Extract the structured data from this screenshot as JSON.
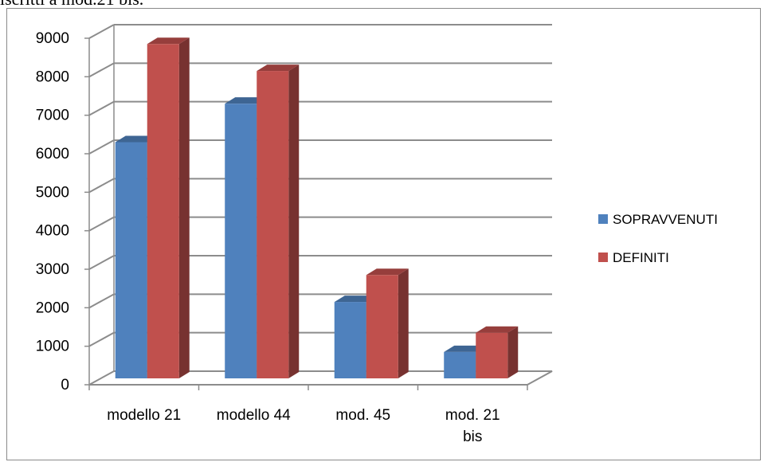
{
  "header_text": "iscritti a mod.21 bis.",
  "chart_data": {
    "type": "bar",
    "categories": [
      [
        "modello 21"
      ],
      [
        "modello 44"
      ],
      [
        "mod. 45"
      ],
      [
        "mod. 21",
        "bis"
      ]
    ],
    "series": [
      {
        "name": "SOPRAVVENUTI",
        "values": [
          6300,
          7300,
          2150,
          850
        ],
        "color": "#4F81BD"
      },
      {
        "name": "DEFINITI",
        "values": [
          8850,
          8150,
          2850,
          1350
        ],
        "color": "#C0504D"
      }
    ],
    "y_ticks": [
      "0",
      "1000",
      "2000",
      "3000",
      "4000",
      "5000",
      "6000",
      "7000",
      "8000",
      "9000"
    ],
    "ylim": [
      0,
      9000
    ],
    "grid": true,
    "legend_position": "right",
    "style": "3d-clustered-column"
  }
}
